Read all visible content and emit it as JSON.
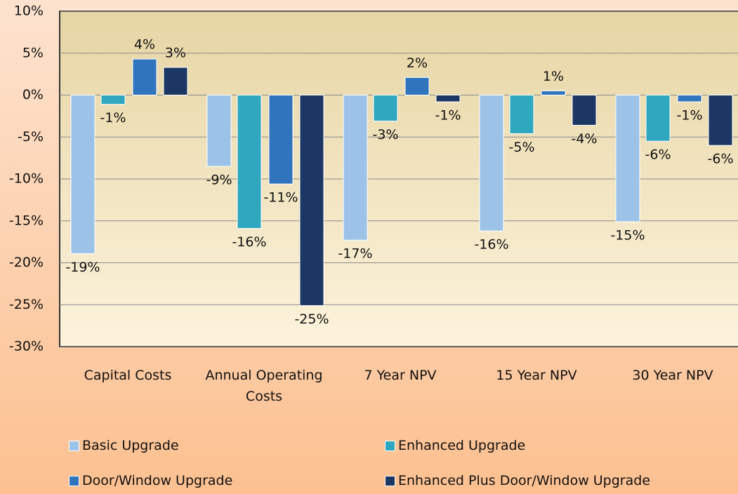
{
  "chart_data": {
    "type": "bar",
    "categories": [
      "Capital Costs",
      "Annual Operating Costs",
      "7 Year NPV",
      "15 Year NPV",
      "30 Year NPV"
    ],
    "series": [
      {
        "name": "Basic Upgrade",
        "color": "#9cc2e8",
        "values": [
          -18.9,
          -8.5,
          -17.3,
          -16.2,
          -15.1
        ],
        "value_labels": [
          "-19%",
          "-9%",
          "-17%",
          "-16%",
          "-15%"
        ]
      },
      {
        "name": "Enhanced Upgrade",
        "color": "#2fa7bf",
        "values": [
          -1.1,
          -15.9,
          -3.1,
          -4.6,
          -5.5
        ],
        "value_labels": [
          "-1%",
          "-16%",
          "-3%",
          "-5%",
          "-6%"
        ]
      },
      {
        "name": "Door/Window Upgrade",
        "color": "#2f74bd",
        "values": [
          4.3,
          -10.6,
          2.1,
          0.5,
          -0.8
        ],
        "value_labels": [
          "4%",
          "-11%",
          "2%",
          "1%",
          "-1%"
        ]
      },
      {
        "name": "Enhanced Plus Door/Window Upgrade",
        "color": "#1c3763",
        "values": [
          3.3,
          -25.1,
          -0.8,
          -3.6,
          -6.0
        ],
        "value_labels": [
          "3%",
          "-25%",
          "-1%",
          "-4%",
          "-6%"
        ]
      }
    ],
    "ylim": [
      -30,
      10
    ],
    "yticks": [
      {
        "value": -30,
        "label": "-30%"
      },
      {
        "value": -25,
        "label": "-25%"
      },
      {
        "value": -20,
        "label": "-20%"
      },
      {
        "value": -15,
        "label": "-15%"
      },
      {
        "value": -10,
        "label": "-10%"
      },
      {
        "value": -5,
        "label": "-5%"
      },
      {
        "value": 0,
        "label": "0%"
      },
      {
        "value": 5,
        "label": "5%"
      },
      {
        "value": 10,
        "label": "10%"
      }
    ],
    "grid": true
  }
}
